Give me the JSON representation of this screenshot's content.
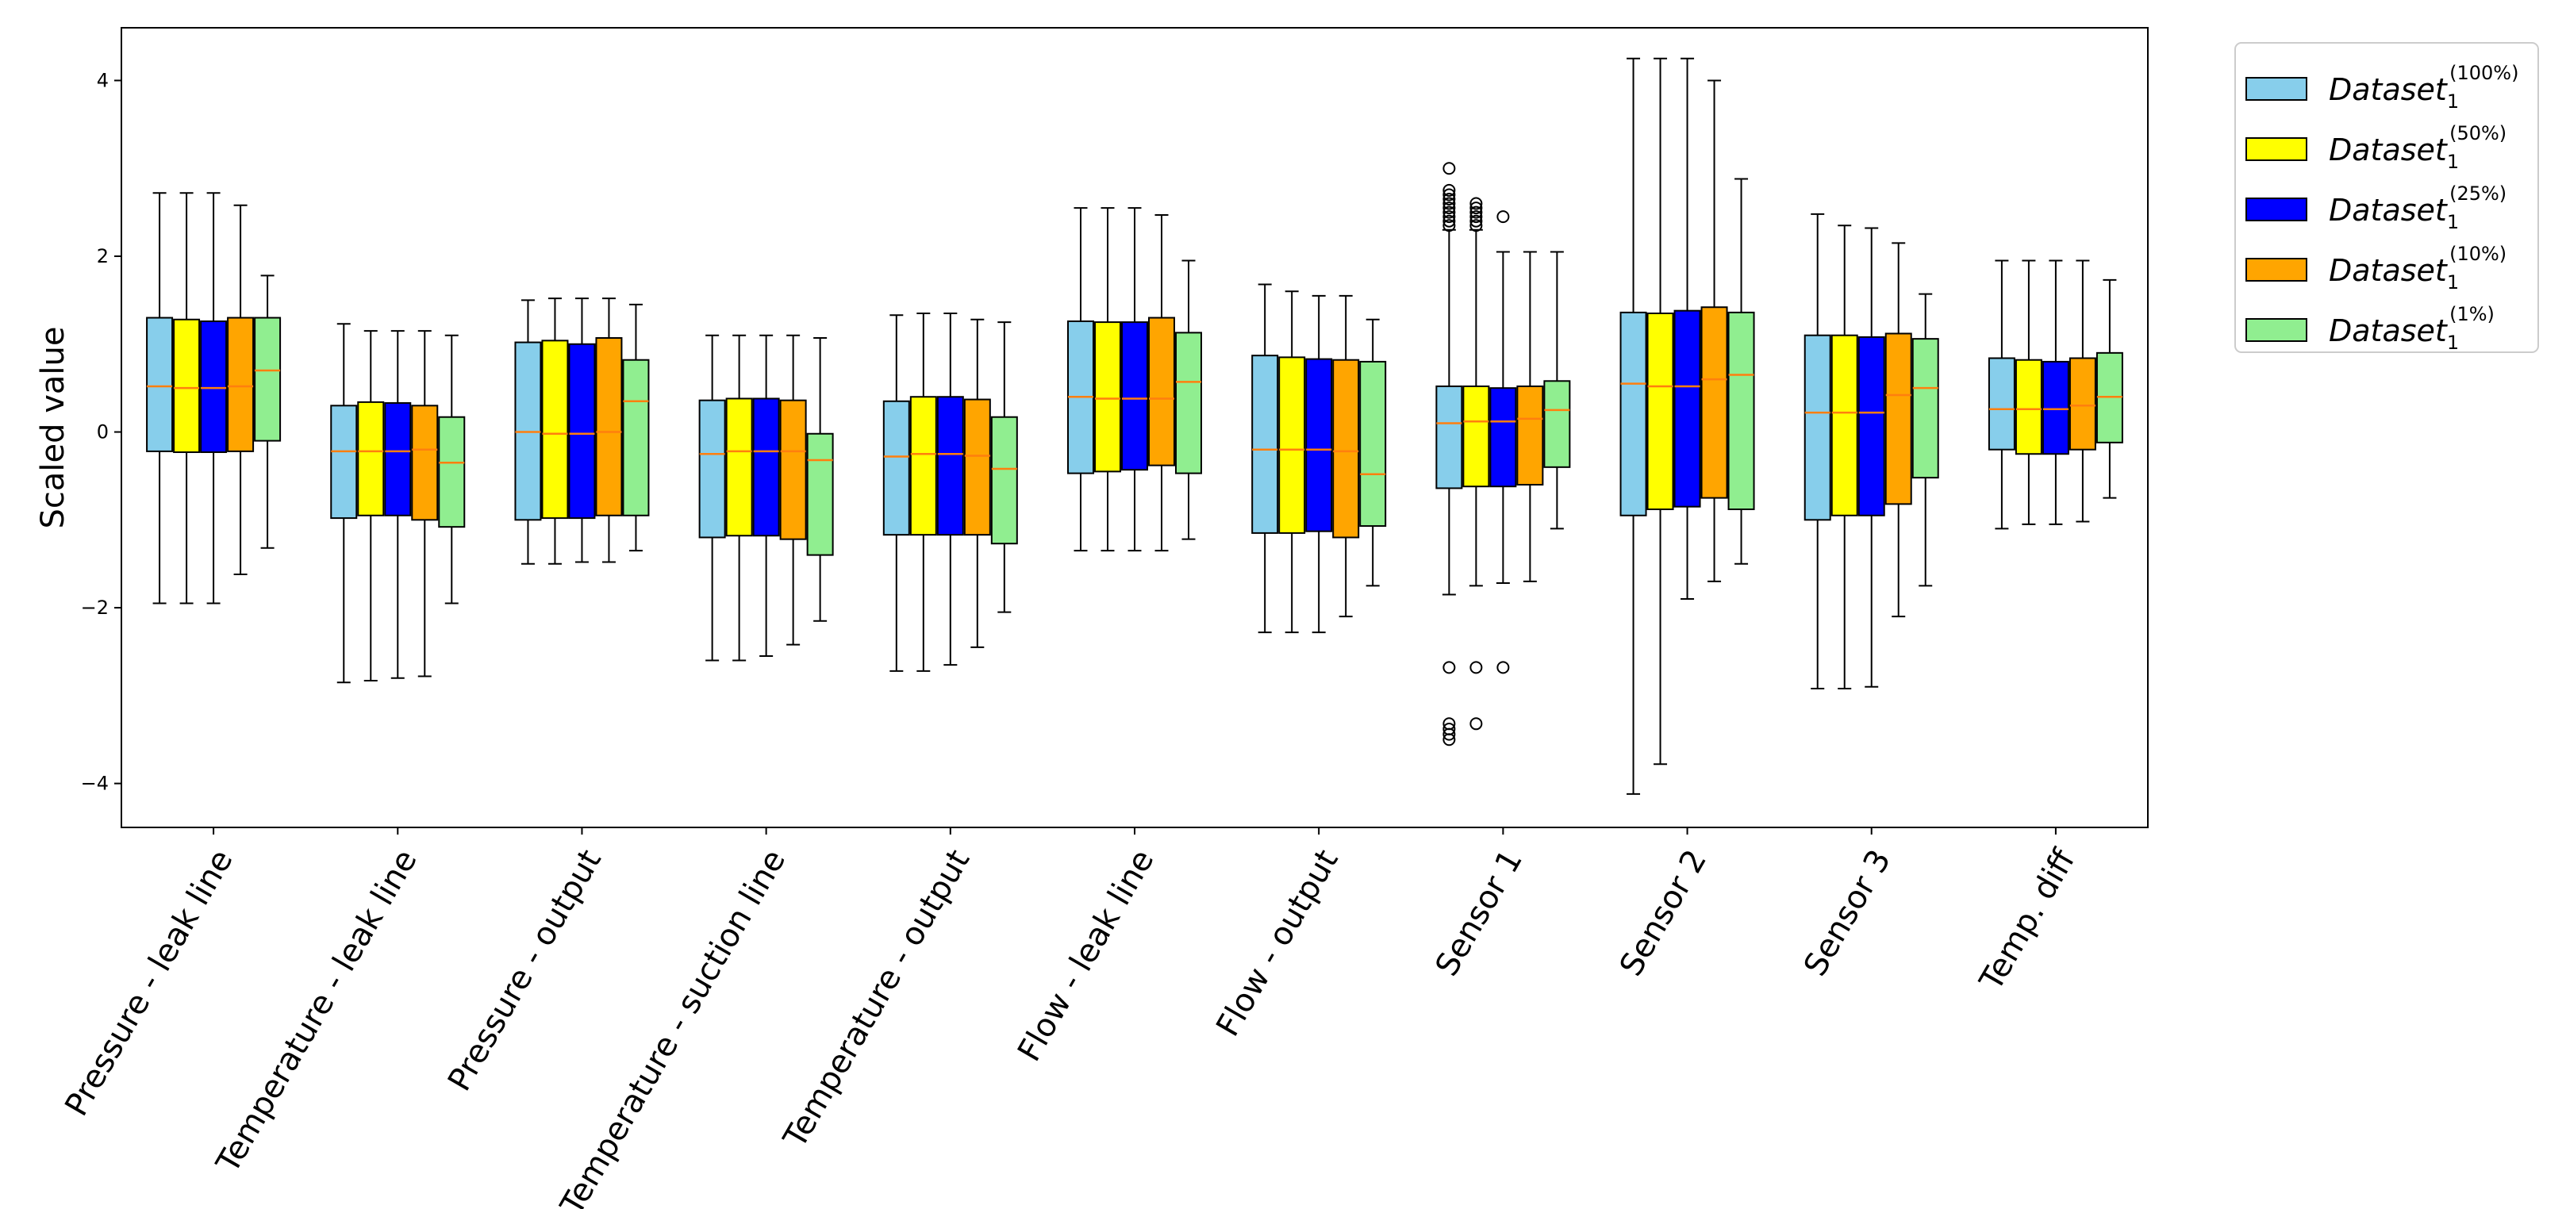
{
  "chart_data": {
    "type": "boxplot",
    "ylabel": "Scaled value",
    "ylim": [
      -4.5,
      4.6
    ],
    "yticks": [
      -4,
      -2,
      0,
      2,
      4
    ],
    "ytick_labels": [
      "−4",
      "−2",
      "0",
      "2",
      "4"
    ],
    "grid": false,
    "legend_position": "outside-top-right",
    "categories": [
      "Pressure - leak line",
      "Temperature - leak line",
      "Pressure - output",
      "Temperature - suction line",
      "Temperature - output",
      "Flow - leak line",
      "Flow - output",
      "Sensor 1",
      "Sensor 2",
      "Sensor 3",
      "Temp. diff"
    ],
    "series": [
      {
        "name": "Dataset",
        "subscript": "1",
        "superscript": "(100%)",
        "color": "#87CEEB",
        "boxes": [
          {
            "whislo": -1.95,
            "q1": -0.22,
            "med": 0.52,
            "q3": 1.3,
            "whishi": 2.72,
            "fliers": []
          },
          {
            "whislo": -2.85,
            "q1": -0.98,
            "med": -0.22,
            "q3": 0.3,
            "whishi": 1.23,
            "fliers": []
          },
          {
            "whislo": -1.5,
            "q1": -1.0,
            "med": 0.0,
            "q3": 1.02,
            "whishi": 1.5,
            "fliers": []
          },
          {
            "whislo": -2.6,
            "q1": -1.2,
            "med": -0.25,
            "q3": 0.36,
            "whishi": 1.1,
            "fliers": []
          },
          {
            "whislo": -2.72,
            "q1": -1.17,
            "med": -0.28,
            "q3": 0.35,
            "whishi": 1.33,
            "fliers": []
          },
          {
            "whislo": -1.35,
            "q1": -0.47,
            "med": 0.4,
            "q3": 1.26,
            "whishi": 2.55,
            "fliers": []
          },
          {
            "whislo": -2.28,
            "q1": -1.15,
            "med": -0.2,
            "q3": 0.87,
            "whishi": 1.68,
            "fliers": []
          },
          {
            "whislo": -1.85,
            "q1": -0.64,
            "med": 0.1,
            "q3": 0.52,
            "whishi": 2.3,
            "fliers": [
              2.35,
              2.4,
              2.45,
              2.5,
              2.55,
              2.6,
              2.65,
              2.7,
              2.75,
              3.0,
              -2.68,
              -3.32,
              -3.38,
              -3.44,
              -3.5
            ]
          },
          {
            "whislo": -4.12,
            "q1": -0.95,
            "med": 0.55,
            "q3": 1.36,
            "whishi": 4.25,
            "fliers": []
          },
          {
            "whislo": -2.92,
            "q1": -1.0,
            "med": 0.22,
            "q3": 1.1,
            "whishi": 2.48,
            "fliers": []
          },
          {
            "whislo": -1.1,
            "q1": -0.2,
            "med": 0.26,
            "q3": 0.84,
            "whishi": 1.95,
            "fliers": []
          }
        ]
      },
      {
        "name": "Dataset",
        "subscript": "1",
        "superscript": "(50%)",
        "color": "#FFFF00",
        "boxes": [
          {
            "whislo": -1.95,
            "q1": -0.23,
            "med": 0.5,
            "q3": 1.28,
            "whishi": 2.72,
            "fliers": []
          },
          {
            "whislo": -2.83,
            "q1": -0.95,
            "med": -0.22,
            "q3": 0.34,
            "whishi": 1.15,
            "fliers": []
          },
          {
            "whislo": -1.5,
            "q1": -0.98,
            "med": -0.02,
            "q3": 1.04,
            "whishi": 1.52,
            "fliers": []
          },
          {
            "whislo": -2.6,
            "q1": -1.18,
            "med": -0.22,
            "q3": 0.38,
            "whishi": 1.1,
            "fliers": []
          },
          {
            "whislo": -2.72,
            "q1": -1.17,
            "med": -0.25,
            "q3": 0.4,
            "whishi": 1.35,
            "fliers": []
          },
          {
            "whislo": -1.35,
            "q1": -0.45,
            "med": 0.38,
            "q3": 1.25,
            "whishi": 2.55,
            "fliers": []
          },
          {
            "whislo": -2.28,
            "q1": -1.15,
            "med": -0.2,
            "q3": 0.85,
            "whishi": 1.6,
            "fliers": []
          },
          {
            "whislo": -1.75,
            "q1": -0.62,
            "med": 0.12,
            "q3": 0.52,
            "whishi": 2.3,
            "fliers": [
              2.35,
              2.4,
              2.45,
              2.5,
              2.55,
              2.6,
              -2.68,
              -3.32
            ]
          },
          {
            "whislo": -3.78,
            "q1": -0.88,
            "med": 0.52,
            "q3": 1.35,
            "whishi": 4.25,
            "fliers": []
          },
          {
            "whislo": -2.92,
            "q1": -0.95,
            "med": 0.22,
            "q3": 1.1,
            "whishi": 2.35,
            "fliers": []
          },
          {
            "whislo": -1.05,
            "q1": -0.25,
            "med": 0.26,
            "q3": 0.82,
            "whishi": 1.95,
            "fliers": []
          }
        ]
      },
      {
        "name": "Dataset",
        "subscript": "1",
        "superscript": "(25%)",
        "color": "#0000FF",
        "boxes": [
          {
            "whislo": -1.95,
            "q1": -0.23,
            "med": 0.5,
            "q3": 1.26,
            "whishi": 2.72,
            "fliers": []
          },
          {
            "whislo": -2.8,
            "q1": -0.95,
            "med": -0.22,
            "q3": 0.33,
            "whishi": 1.15,
            "fliers": []
          },
          {
            "whislo": -1.48,
            "q1": -0.98,
            "med": -0.02,
            "q3": 1.0,
            "whishi": 1.52,
            "fliers": []
          },
          {
            "whislo": -2.55,
            "q1": -1.18,
            "med": -0.22,
            "q3": 0.38,
            "whishi": 1.1,
            "fliers": []
          },
          {
            "whislo": -2.65,
            "q1": -1.17,
            "med": -0.25,
            "q3": 0.4,
            "whishi": 1.35,
            "fliers": []
          },
          {
            "whislo": -1.35,
            "q1": -0.43,
            "med": 0.38,
            "q3": 1.25,
            "whishi": 2.55,
            "fliers": []
          },
          {
            "whislo": -2.28,
            "q1": -1.13,
            "med": -0.2,
            "q3": 0.83,
            "whishi": 1.55,
            "fliers": []
          },
          {
            "whislo": -1.72,
            "q1": -0.62,
            "med": 0.12,
            "q3": 0.5,
            "whishi": 2.05,
            "fliers": [
              2.45,
              -2.68
            ]
          },
          {
            "whislo": -1.9,
            "q1": -0.85,
            "med": 0.52,
            "q3": 1.38,
            "whishi": 4.25,
            "fliers": []
          },
          {
            "whislo": -2.9,
            "q1": -0.95,
            "med": 0.22,
            "q3": 1.08,
            "whishi": 2.32,
            "fliers": []
          },
          {
            "whislo": -1.05,
            "q1": -0.25,
            "med": 0.26,
            "q3": 0.8,
            "whishi": 1.95,
            "fliers": []
          }
        ]
      },
      {
        "name": "Dataset",
        "subscript": "1",
        "superscript": "(10%)",
        "color": "#FFA500",
        "boxes": [
          {
            "whislo": -1.62,
            "q1": -0.22,
            "med": 0.52,
            "q3": 1.3,
            "whishi": 2.58,
            "fliers": []
          },
          {
            "whislo": -2.78,
            "q1": -1.0,
            "med": -0.2,
            "q3": 0.3,
            "whishi": 1.15,
            "fliers": []
          },
          {
            "whislo": -1.48,
            "q1": -0.95,
            "med": 0.0,
            "q3": 1.07,
            "whishi": 1.52,
            "fliers": []
          },
          {
            "whislo": -2.42,
            "q1": -1.22,
            "med": -0.22,
            "q3": 0.36,
            "whishi": 1.1,
            "fliers": []
          },
          {
            "whislo": -2.45,
            "q1": -1.17,
            "med": -0.27,
            "q3": 0.37,
            "whishi": 1.28,
            "fliers": []
          },
          {
            "whislo": -1.35,
            "q1": -0.38,
            "med": 0.38,
            "q3": 1.3,
            "whishi": 2.47,
            "fliers": []
          },
          {
            "whislo": -2.1,
            "q1": -1.2,
            "med": -0.22,
            "q3": 0.82,
            "whishi": 1.55,
            "fliers": []
          },
          {
            "whislo": -1.7,
            "q1": -0.6,
            "med": 0.15,
            "q3": 0.52,
            "whishi": 2.05,
            "fliers": []
          },
          {
            "whislo": -1.7,
            "q1": -0.75,
            "med": 0.6,
            "q3": 1.42,
            "whishi": 4.0,
            "fliers": []
          },
          {
            "whislo": -2.1,
            "q1": -0.82,
            "med": 0.42,
            "q3": 1.12,
            "whishi": 2.15,
            "fliers": []
          },
          {
            "whislo": -1.02,
            "q1": -0.2,
            "med": 0.3,
            "q3": 0.84,
            "whishi": 1.95,
            "fliers": []
          }
        ]
      },
      {
        "name": "Dataset",
        "subscript": "1",
        "superscript": "(1%)",
        "color": "#90EE90",
        "boxes": [
          {
            "whislo": -1.32,
            "q1": -0.1,
            "med": 0.7,
            "q3": 1.3,
            "whishi": 1.78,
            "fliers": []
          },
          {
            "whislo": -1.95,
            "q1": -1.08,
            "med": -0.35,
            "q3": 0.17,
            "whishi": 1.1,
            "fliers": []
          },
          {
            "whislo": -1.35,
            "q1": -0.95,
            "med": 0.35,
            "q3": 0.82,
            "whishi": 1.45,
            "fliers": []
          },
          {
            "whislo": -2.15,
            "q1": -1.4,
            "med": -0.32,
            "q3": -0.02,
            "whishi": 1.07,
            "fliers": []
          },
          {
            "whislo": -2.05,
            "q1": -1.27,
            "med": -0.42,
            "q3": 0.17,
            "whishi": 1.25,
            "fliers": []
          },
          {
            "whislo": -1.22,
            "q1": -0.47,
            "med": 0.57,
            "q3": 1.13,
            "whishi": 1.95,
            "fliers": []
          },
          {
            "whislo": -1.75,
            "q1": -1.07,
            "med": -0.48,
            "q3": 0.8,
            "whishi": 1.28,
            "fliers": []
          },
          {
            "whislo": -1.1,
            "q1": -0.4,
            "med": 0.25,
            "q3": 0.58,
            "whishi": 2.05,
            "fliers": []
          },
          {
            "whislo": -1.5,
            "q1": -0.88,
            "med": 0.65,
            "q3": 1.36,
            "whishi": 2.88,
            "fliers": []
          },
          {
            "whislo": -1.75,
            "q1": -0.52,
            "med": 0.5,
            "q3": 1.06,
            "whishi": 1.57,
            "fliers": []
          },
          {
            "whislo": -0.75,
            "q1": -0.12,
            "med": 0.4,
            "q3": 0.9,
            "whishi": 1.73,
            "fliers": []
          }
        ]
      }
    ],
    "median_color": "#FF7F0E"
  }
}
